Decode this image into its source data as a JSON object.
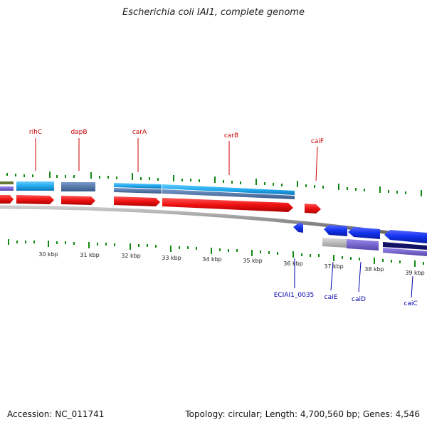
{
  "title": "Escherichia coli IAI1, complete genome",
  "footer": {
    "accession": "Accession: NC_011741",
    "summary": "Topology: circular; Length: 4,700,560 bp; Genes: 4,546"
  },
  "colors": {
    "forward_gene": "#ee1111",
    "reverse_gene": "#1133ee",
    "tick": "#118811",
    "forward_label": "#cc0000",
    "reverse_label": "#0000aa",
    "backbone": "#888888",
    "light_blue": "#22aaee",
    "steel_blue": "#5577aa",
    "purple": "#7766cc",
    "navy": "#111166",
    "grey_bar": "#bbbbbb",
    "olive": "#667733"
  },
  "kbp_labels": [
    "30 kbp",
    "31 kbp",
    "32 kbp",
    "33 kbp",
    "34 kbp",
    "35 kbp",
    "36 kbp",
    "37 kbp",
    "38 kbp",
    "39 kbp"
  ],
  "forward_genes": [
    "rihC",
    "dapB",
    "carA",
    "carB",
    "caiF"
  ],
  "reverse_genes": [
    "ECIAI1_0035",
    "caiE",
    "caiD",
    "caiC"
  ]
}
